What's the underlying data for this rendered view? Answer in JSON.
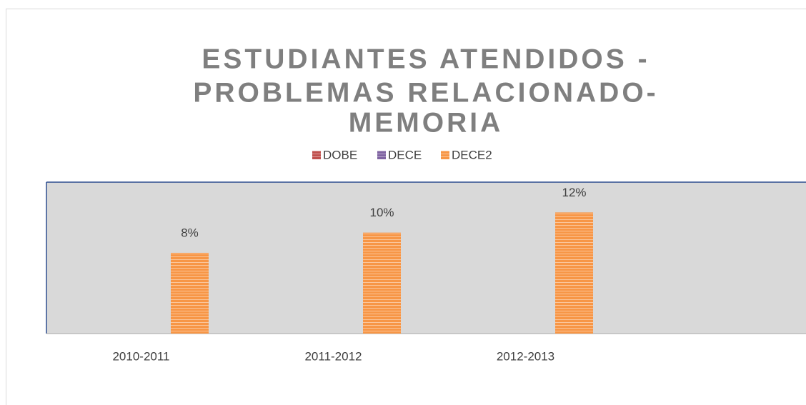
{
  "chart_data": {
    "type": "bar",
    "title": [
      "ESTUDIANTES ATENDIDOS -",
      "PROBLEMAS RELACIONADO-",
      "MEMORIA"
    ],
    "categories": [
      "2010-2011",
      "2011-2012",
      "2012-2013",
      null
    ],
    "series": [
      {
        "name": "DOBE",
        "color": "#c0504d",
        "values": [
          null,
          null,
          null,
          null
        ]
      },
      {
        "name": "DECE",
        "color": "#8064a2",
        "values": [
          null,
          null,
          null,
          null
        ]
      },
      {
        "name": "DECE2",
        "color": "#f79646",
        "values": [
          8,
          10,
          12,
          null
        ],
        "value_labels": [
          "8%",
          "10%",
          "12%",
          null
        ]
      }
    ],
    "ylim": [
      0,
      15
    ],
    "grid": false,
    "legend": "top"
  }
}
